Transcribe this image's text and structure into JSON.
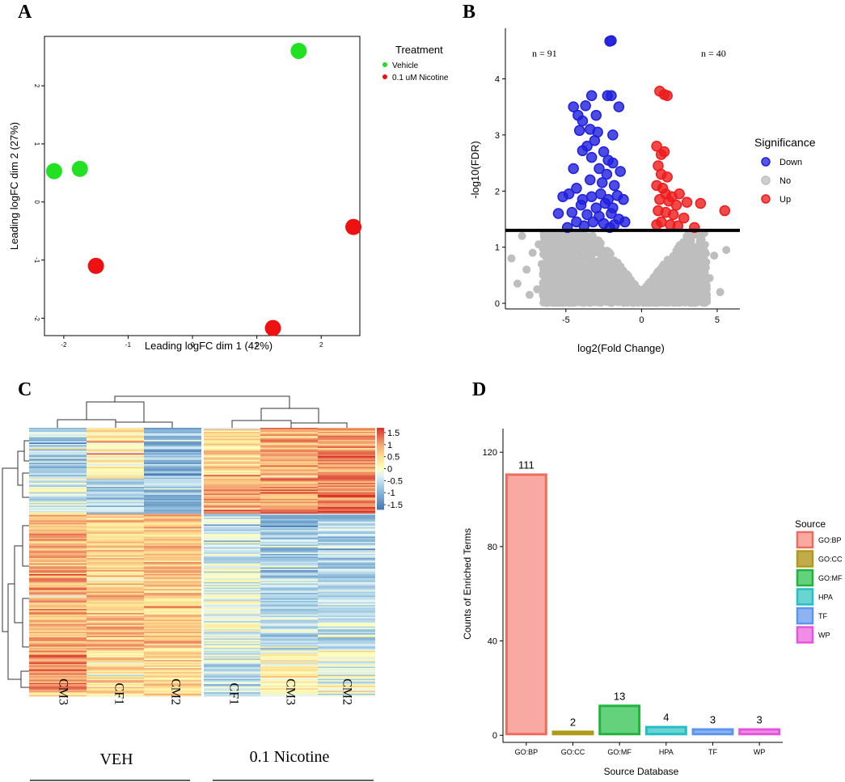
{
  "panels": {
    "a": "A",
    "b": "B",
    "c": "C",
    "d": "D"
  },
  "chart_data": [
    {
      "id": "A",
      "type": "scatter",
      "xlabel": "Leading logFC dim 1 (42%)",
      "ylabel": "Leading logFC dim 2 (27%)",
      "xlim": [
        -2.3,
        2.6
      ],
      "ylim": [
        -2.3,
        2.85
      ],
      "xticks": [
        -2,
        -1,
        0,
        1,
        2
      ],
      "yticks": [
        -2,
        -1,
        0,
        1,
        2
      ],
      "legend_title": "Treatment",
      "series": [
        {
          "name": "Vehicle",
          "color": "#22e022",
          "points": [
            [
              -2.15,
              0.53
            ],
            [
              -1.75,
              0.57
            ],
            [
              1.65,
              2.6
            ]
          ]
        },
        {
          "name": "0.1 uM Nicotine",
          "color": "#ee1111",
          "points": [
            [
              -1.5,
              -1.1
            ],
            [
              1.25,
              -2.17
            ],
            [
              2.5,
              -0.43
            ]
          ]
        }
      ]
    },
    {
      "id": "B",
      "type": "scatter",
      "title": "",
      "xlabel": "log2(Fold Change)",
      "ylabel": "-log10(FDR)",
      "xlim": [
        -9,
        6.5
      ],
      "ylim": [
        -0.1,
        4.9
      ],
      "xticks": [
        -5,
        0,
        5
      ],
      "yticks": [
        0,
        1,
        2,
        3,
        4
      ],
      "threshold": 1.3,
      "annotations": [
        "n = 91",
        "n = 40"
      ],
      "legend_title": "Significance",
      "legend": [
        {
          "name": "Down",
          "color": "#1f1fdd"
        },
        {
          "name": "No",
          "color": "#bebebe"
        },
        {
          "name": "Up",
          "color": "#ee1c1c"
        }
      ],
      "down_points": [
        [
          -2.0,
          4.68
        ],
        [
          -2.1,
          4.67
        ],
        [
          -3.3,
          3.7
        ],
        [
          -2.25,
          3.7
        ],
        [
          -2.0,
          3.7
        ],
        [
          -4.5,
          3.5
        ],
        [
          -3.7,
          3.52
        ],
        [
          -1.5,
          3.5
        ],
        [
          -4.2,
          3.35
        ],
        [
          -3.0,
          3.35
        ],
        [
          -3.9,
          3.25
        ],
        [
          -3.4,
          3.1
        ],
        [
          -2.9,
          3.05
        ],
        [
          -4.1,
          3.08
        ],
        [
          -1.9,
          3.0
        ],
        [
          -3.1,
          2.9
        ],
        [
          -3.6,
          2.8
        ],
        [
          -3.9,
          2.72
        ],
        [
          -2.5,
          2.7
        ],
        [
          -3.3,
          2.6
        ],
        [
          -2.2,
          2.55
        ],
        [
          -1.9,
          2.5
        ],
        [
          -4.5,
          2.4
        ],
        [
          -2.8,
          2.4
        ],
        [
          -1.4,
          2.35
        ],
        [
          -2.3,
          2.3
        ],
        [
          -3.4,
          2.2
        ],
        [
          -2.6,
          2.15
        ],
        [
          -4.3,
          2.05
        ],
        [
          -1.8,
          2.1
        ],
        [
          -5.2,
          1.9
        ],
        [
          -4.8,
          1.95
        ],
        [
          -3.9,
          1.85
        ],
        [
          -3.3,
          1.9
        ],
        [
          -2.7,
          1.95
        ],
        [
          -2.2,
          1.85
        ],
        [
          -1.6,
          1.92
        ],
        [
          -1.2,
          1.85
        ],
        [
          -4.0,
          1.75
        ],
        [
          -3.0,
          1.7
        ],
        [
          -2.4,
          1.78
        ],
        [
          -1.9,
          1.7
        ],
        [
          -5.5,
          1.6
        ],
        [
          -4.6,
          1.62
        ],
        [
          -3.6,
          1.58
        ],
        [
          -2.8,
          1.55
        ],
        [
          -2.0,
          1.6
        ],
        [
          -1.5,
          1.5
        ],
        [
          -3.2,
          1.45
        ],
        [
          -4.3,
          1.45
        ],
        [
          -2.5,
          1.42
        ],
        [
          -1.8,
          1.4
        ],
        [
          -1.1,
          1.45
        ],
        [
          -3.8,
          1.38
        ],
        [
          -4.9,
          1.35
        ],
        [
          -2.1,
          1.35
        ]
      ],
      "up_points": [
        [
          1.2,
          3.78
        ],
        [
          1.5,
          3.72
        ],
        [
          1.7,
          3.7
        ],
        [
          1.0,
          2.8
        ],
        [
          1.3,
          2.65
        ],
        [
          1.5,
          2.7
        ],
        [
          1.1,
          2.45
        ],
        [
          1.3,
          2.3
        ],
        [
          1.7,
          2.25
        ],
        [
          1.0,
          2.1
        ],
        [
          1.4,
          2.05
        ],
        [
          1.6,
          1.95
        ],
        [
          2.0,
          1.9
        ],
        [
          2.5,
          1.95
        ],
        [
          1.2,
          1.85
        ],
        [
          1.8,
          1.82
        ],
        [
          2.3,
          1.75
        ],
        [
          3.0,
          1.8
        ],
        [
          3.9,
          1.78
        ],
        [
          5.5,
          1.65
        ],
        [
          1.1,
          1.65
        ],
        [
          1.6,
          1.62
        ],
        [
          2.1,
          1.58
        ],
        [
          2.8,
          1.52
        ],
        [
          1.3,
          1.45
        ],
        [
          1.9,
          1.4
        ],
        [
          2.4,
          1.38
        ],
        [
          3.5,
          1.35
        ],
        [
          1.0,
          1.4
        ]
      ]
    },
    {
      "id": "C",
      "type": "heatmap",
      "columns": [
        "CM3",
        "CF1",
        "CM2",
        "CF1",
        "CM3",
        "CM2"
      ],
      "groups": [
        "VEH",
        "0.1 Nicotine"
      ],
      "colorbar_ticks": [
        "1.5",
        "1",
        "0.5",
        "0",
        "-0.5",
        "-1",
        "-1.5"
      ],
      "colorbar_range": [
        -1.7,
        1.7
      ],
      "row_blocks": [
        {
          "rows": 38,
          "means": [
            -0.7,
            0.2,
            -0.9,
            0.5,
            0.9,
            1.0
          ]
        },
        {
          "rows": 26,
          "means": [
            -0.3,
            -0.7,
            -0.8,
            0.8,
            1.1,
            1.2
          ]
        },
        {
          "rows": 48,
          "means": [
            0.8,
            0.6,
            0.7,
            -0.3,
            -0.8,
            -0.7
          ]
        },
        {
          "rows": 54,
          "means": [
            0.9,
            0.7,
            0.6,
            -0.2,
            -0.6,
            -0.5
          ]
        },
        {
          "rows": 34,
          "means": [
            1.0,
            0.5,
            0.5,
            -0.5,
            0.1,
            -0.3
          ]
        }
      ]
    },
    {
      "id": "D",
      "type": "bar",
      "xlabel": "Source Database",
      "ylabel": "Counts of Enriched Terms",
      "categories": [
        "GO:BP",
        "GO:CC",
        "GO:MF",
        "HPA",
        "TF",
        "WP"
      ],
      "values": [
        111,
        2,
        13,
        4,
        3,
        3
      ],
      "ylim": [
        -3,
        130
      ],
      "yticks": [
        0,
        40,
        80,
        120
      ],
      "legend_title": "Source",
      "fills": [
        "#f8a9a1",
        "#c2ab4a",
        "#64d17c",
        "#6bd4d1",
        "#8db3f3",
        "#f08ee7"
      ],
      "strokes": [
        "#f06b5e",
        "#b09a1a",
        "#23b33c",
        "#22bfc4",
        "#5c96ec",
        "#e455dc"
      ]
    }
  ]
}
